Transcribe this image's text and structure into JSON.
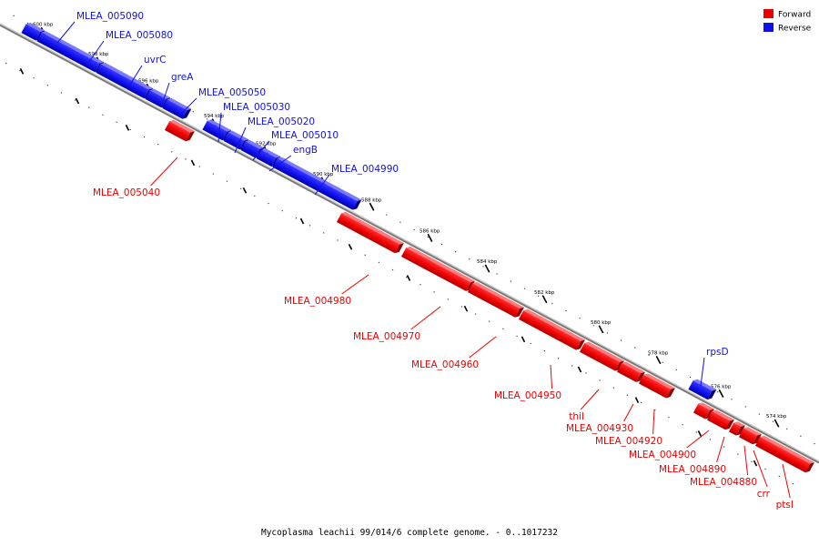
{
  "title": "Mycoplasma leachii 99/014/6 complete genome. - 0..1017232",
  "colors": {
    "forward": "#ee0000",
    "reverse": "#1010ee",
    "backbone": "#777777"
  },
  "legend": [
    {
      "label": "Forward",
      "color": "#ee0000"
    },
    {
      "label": "Reverse",
      "color": "#1010ee"
    }
  ],
  "ticks": [
    "600 kbp",
    "598 kbp",
    "596 kbp",
    "594 kbp",
    "592 kbp",
    "590 kbp",
    "588 kbp",
    "586 kbp",
    "584 kbp",
    "582 kbp",
    "580 kbp",
    "578 kbp",
    "576 kbp",
    "574 kbp"
  ],
  "genes": [
    {
      "name": "MLEA_005090",
      "strand": "reverse"
    },
    {
      "name": "MLEA_005080",
      "strand": "reverse"
    },
    {
      "name": "uvrC",
      "strand": "reverse"
    },
    {
      "name": "greA",
      "strand": "reverse"
    },
    {
      "name": "MLEA_005050",
      "strand": "reverse"
    },
    {
      "name": "MLEA_005040",
      "strand": "forward"
    },
    {
      "name": "MLEA_005030",
      "strand": "reverse"
    },
    {
      "name": "MLEA_005020",
      "strand": "reverse"
    },
    {
      "name": "MLEA_005010",
      "strand": "reverse"
    },
    {
      "name": "engB",
      "strand": "reverse"
    },
    {
      "name": "MLEA_004990",
      "strand": "reverse"
    },
    {
      "name": "MLEA_004980",
      "strand": "forward"
    },
    {
      "name": "MLEA_004970",
      "strand": "forward"
    },
    {
      "name": "MLEA_004960",
      "strand": "forward"
    },
    {
      "name": "MLEA_004950",
      "strand": "forward"
    },
    {
      "name": "thiI",
      "strand": "forward"
    },
    {
      "name": "MLEA_004930",
      "strand": "forward"
    },
    {
      "name": "MLEA_004920",
      "strand": "forward"
    },
    {
      "name": "rpsD",
      "strand": "reverse"
    },
    {
      "name": "MLEA_004900",
      "strand": "forward"
    },
    {
      "name": "MLEA_004890",
      "strand": "forward"
    },
    {
      "name": "MLEA_004880",
      "strand": "forward"
    },
    {
      "name": "crr",
      "strand": "forward"
    },
    {
      "name": "ptsI",
      "strand": "forward"
    }
  ]
}
